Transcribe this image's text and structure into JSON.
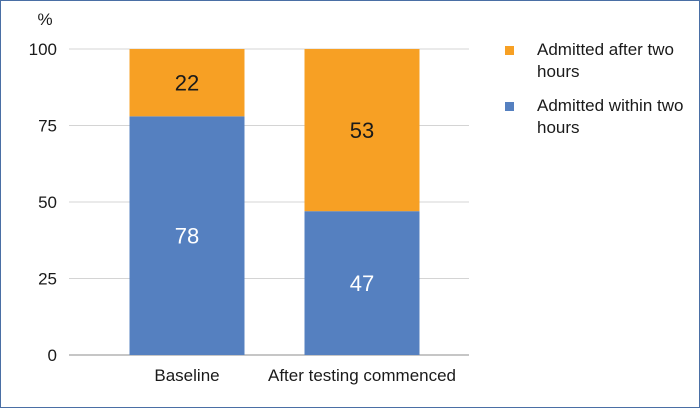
{
  "chart_data": {
    "type": "bar",
    "stacked": true,
    "unit_label": "%",
    "categories": [
      "Baseline",
      "After testing commenced"
    ],
    "series": [
      {
        "name": "Admitted within two hours",
        "values": [
          78,
          47
        ],
        "color": "#5580c0",
        "label_color": "#ffffff"
      },
      {
        "name": "Admitted after two hours",
        "values": [
          22,
          53
        ],
        "color": "#f7a024",
        "label_color": "#1a1a1a"
      }
    ],
    "ylim": [
      0,
      100
    ],
    "yticks": [
      0,
      25,
      50,
      75,
      100
    ],
    "grid": true,
    "legend_position": "right",
    "legend_order": [
      1,
      0
    ]
  }
}
